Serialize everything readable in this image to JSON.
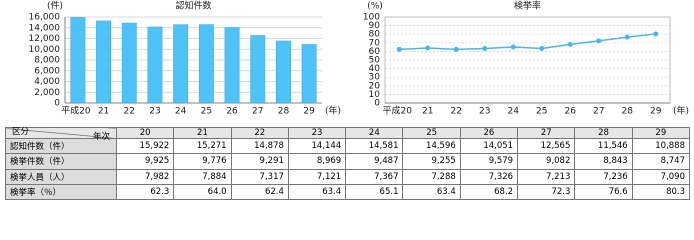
{
  "chart_data": [
    {
      "type": "bar",
      "title": "認知件数",
      "ylabel": "(件)",
      "xlabel": "(年)",
      "color": "#4fc3f7",
      "grid": true,
      "categories": [
        "平成20",
        "21",
        "22",
        "23",
        "24",
        "25",
        "26",
        "27",
        "28",
        "29"
      ],
      "values": [
        15922,
        15271,
        14878,
        14144,
        14581,
        14596,
        14051,
        12565,
        11546,
        10888
      ],
      "ylim": [
        0,
        16000
      ],
      "yticks": [
        0,
        {
          "value": 2000,
          "label": "2,000"
        },
        {
          "value": 4000,
          "label": "4,000"
        },
        {
          "value": 6000,
          "label": "6,000"
        },
        {
          "value": 8000,
          "label": "8,000"
        },
        {
          "value": 10000,
          "label": "10,000"
        },
        {
          "value": 12000,
          "label": "12,000"
        },
        {
          "value": 14000,
          "label": "14,000"
        },
        {
          "value": 16000,
          "label": "16,000"
        }
      ]
    },
    {
      "type": "line",
      "title": "検挙率",
      "ylabel": "(%)",
      "xlabel": "(年)",
      "color": "#4db6e8",
      "grid": true,
      "categories": [
        "平成20",
        "21",
        "22",
        "23",
        "24",
        "25",
        "26",
        "27",
        "28",
        "29"
      ],
      "values": [
        62.3,
        64.0,
        62.4,
        63.4,
        65.1,
        63.4,
        68.2,
        72.3,
        76.6,
        80.3
      ],
      "ylim": [
        0,
        100
      ],
      "yticks": [
        0,
        10,
        20,
        30,
        40,
        50,
        60,
        70,
        80,
        90,
        100
      ]
    }
  ],
  "table": {
    "column_header": "年次",
    "row_header": "区分",
    "columns": [
      "20",
      "21",
      "22",
      "23",
      "24",
      "25",
      "26",
      "27",
      "28",
      "29"
    ],
    "rows": [
      {
        "label": "認知件数（件）",
        "cells": [
          "15,922",
          "15,271",
          "14,878",
          "14,144",
          "14,581",
          "14,596",
          "14,051",
          "12,565",
          "11,546",
          "10,888"
        ]
      },
      {
        "label": "検挙件数（件）",
        "cells": [
          "9,925",
          "9,776",
          "9,291",
          "8,969",
          "9,487",
          "9,255",
          "9,579",
          "9,082",
          "8,843",
          "8,747"
        ]
      },
      {
        "label": "検挙人員（人）",
        "cells": [
          "7,982",
          "7,884",
          "7,317",
          "7,121",
          "7,367",
          "7,288",
          "7,326",
          "7,213",
          "7,236",
          "7,090"
        ]
      },
      {
        "label": "検挙率（％）",
        "cells": [
          "62.3",
          "64.0",
          "62.4",
          "63.4",
          "65.1",
          "63.4",
          "68.2",
          "72.3",
          "76.6",
          "80.3"
        ]
      }
    ]
  }
}
